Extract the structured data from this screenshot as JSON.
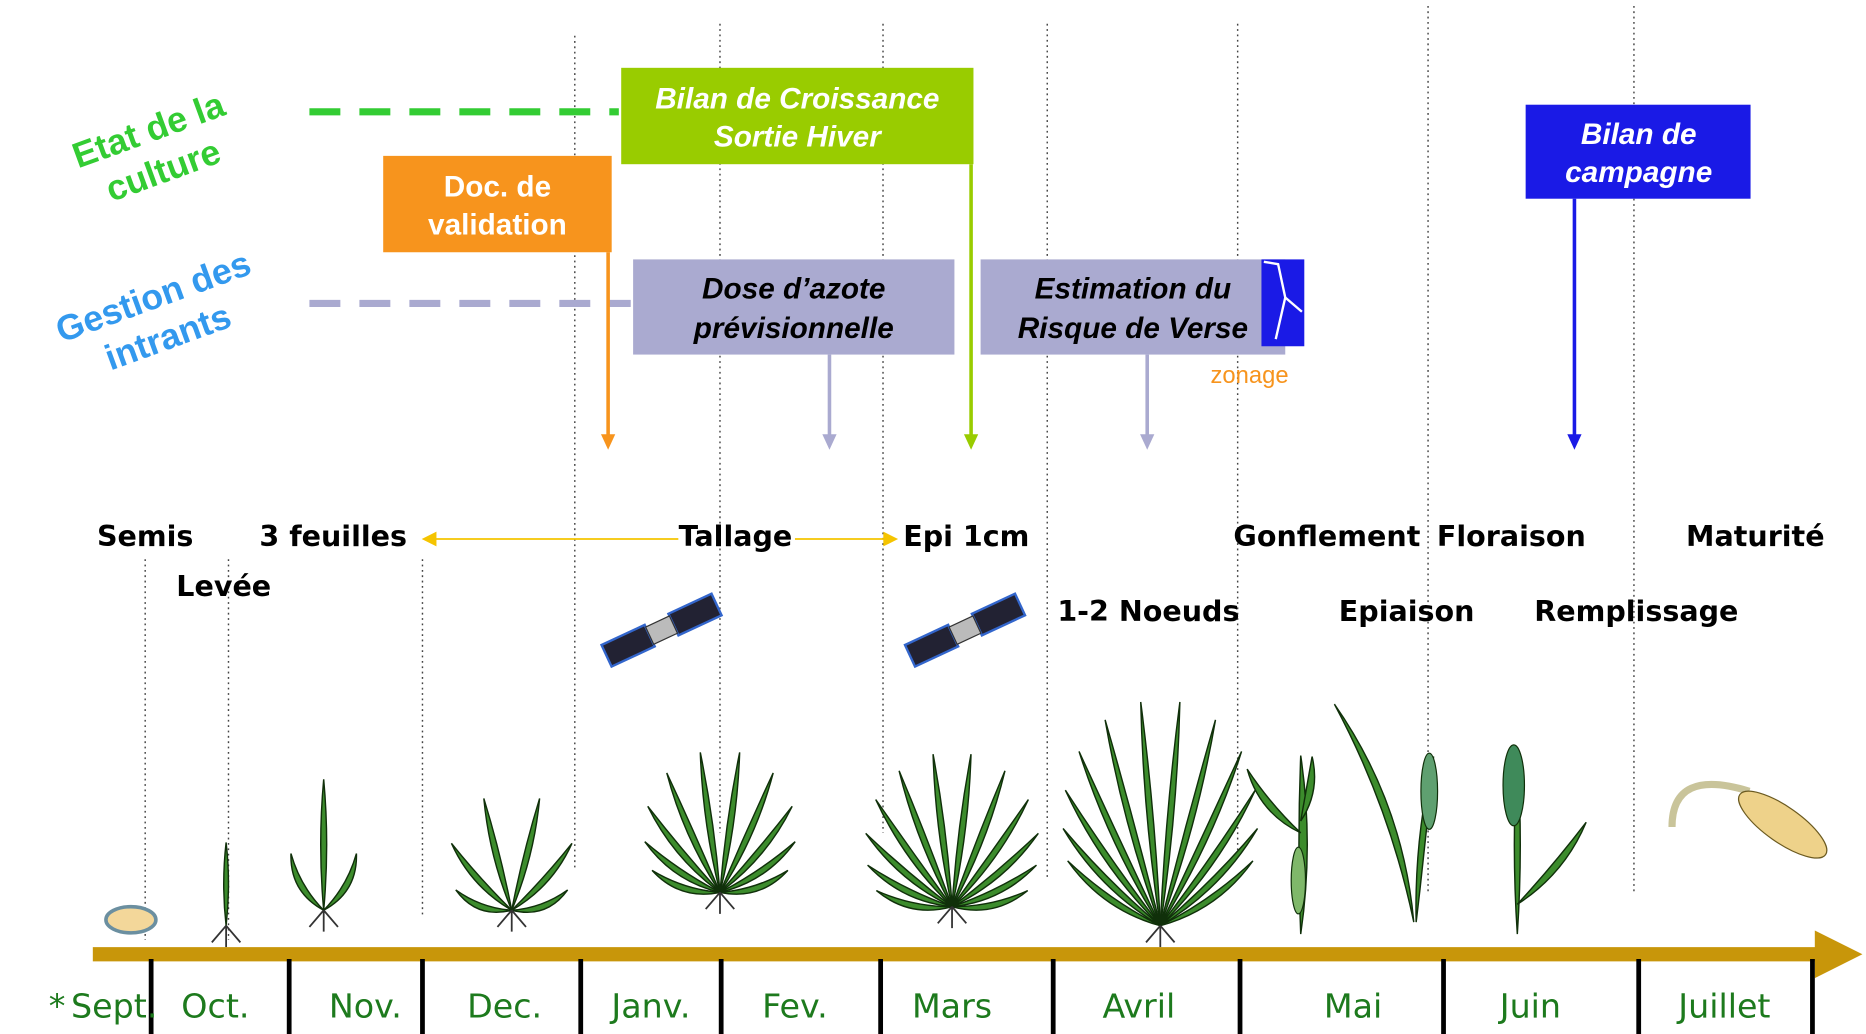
{
  "rows": [
    {
      "label": [
        "Etat de la",
        "culture"
      ]
    },
    {
      "label": [
        "Gestion des",
        "intrants"
      ]
    }
  ],
  "boxes": [
    {
      "lines": [
        "Doc. de",
        "validation"
      ]
    },
    {
      "lines": [
        "Bilan de Croissance",
        "Sortie Hiver"
      ]
    },
    {
      "lines": [
        "Dose d’azote",
        "prévisionnelle"
      ]
    },
    {
      "lines": [
        "Estimation du",
        "Risque de Verse"
      ]
    },
    {
      "lines": [
        "Bilan de",
        "campagne"
      ]
    }
  ],
  "note": "zonage",
  "stages": [
    "Semis",
    "Levée",
    "3 feuilles",
    "Tallage",
    "Epi 1cm",
    "1-2 Noeuds",
    "Gonflement",
    "Epiaison",
    "Floraison",
    "Remplissage",
    "Maturité"
  ],
  "footnote_mark": "*",
  "months": [
    "Sept.",
    "Oct.",
    "Nov.",
    "Dec.",
    "Janv.",
    "Fev.",
    "Mars",
    "Avril",
    "Mai",
    "Juin",
    "Juillet"
  ]
}
